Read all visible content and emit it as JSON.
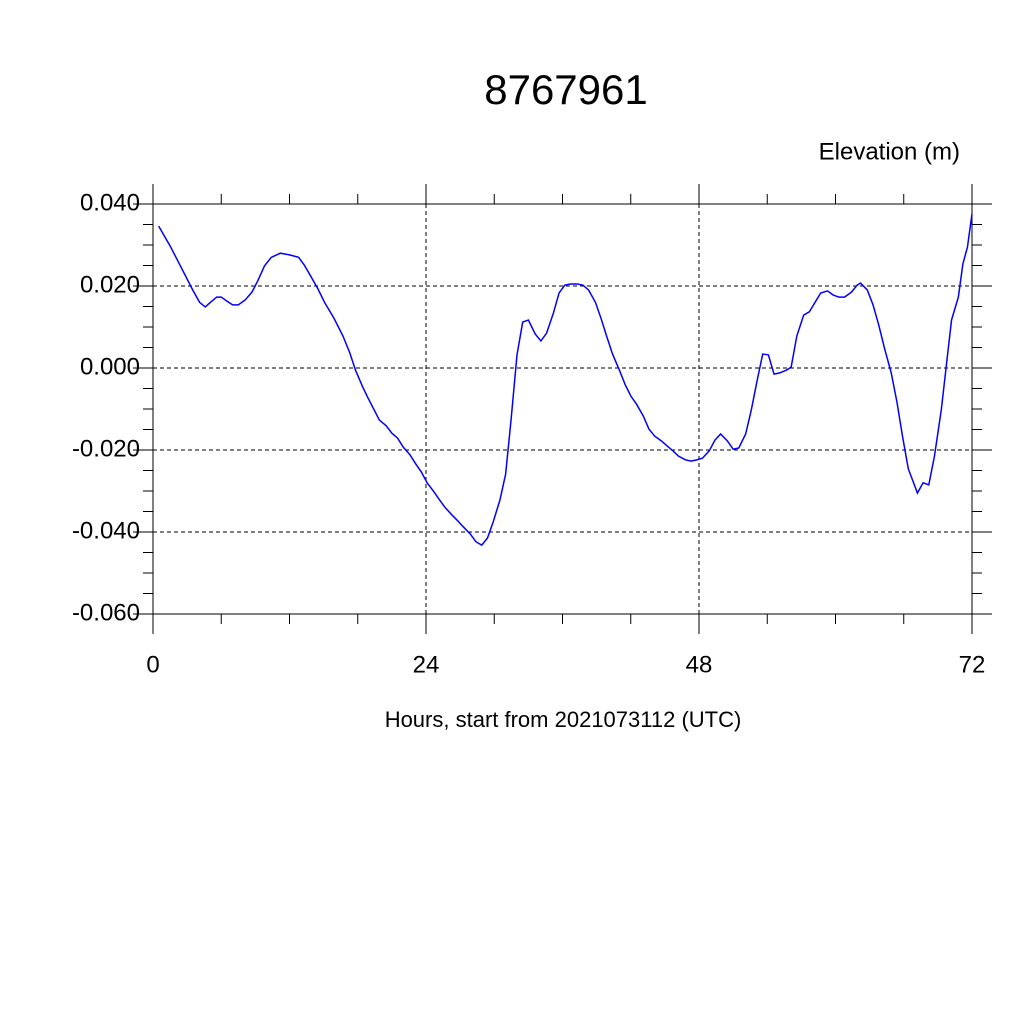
{
  "chart_data": {
    "type": "line",
    "title": "8767961",
    "y_label": "Elevation (m)",
    "x_label": "Hours, start from 2021073112 (UTC)",
    "xlim": [
      0,
      72
    ],
    "xticks": [
      0,
      24,
      48,
      72
    ],
    "ylim": [
      -0.06,
      0.04
    ],
    "yticks": [
      {
        "value": -0.06,
        "label": "-0.060"
      },
      {
        "value": -0.04,
        "label": "-0.040"
      },
      {
        "value": -0.02,
        "label": "-0.020"
      },
      {
        "value": 0,
        "label": "0.000"
      },
      {
        "value": 0.02,
        "label": "0.020"
      },
      {
        "value": 0.04,
        "label": "0.040"
      }
    ],
    "grid": true,
    "series": [
      {
        "color": "#0000ff",
        "x": [
          0.5,
          1.5,
          2.5,
          3.5,
          4.1,
          4.6,
          5.0,
          5.6,
          6.0,
          6.5,
          7.0,
          7.5,
          8.1,
          8.7,
          9.2,
          9.8,
          10.4,
          11.2,
          12.0,
          12.8,
          13.3,
          13.8,
          14.5,
          15.1,
          15.9,
          16.7,
          17.3,
          17.8,
          18.4,
          18.9,
          19.4,
          19.9,
          20.5,
          21.0,
          21.5,
          22.0,
          22.6,
          23.1,
          23.6,
          24.1,
          24.7,
          25.2,
          25.7,
          26.3,
          26.8,
          27.3,
          27.9,
          28.4,
          28.9,
          29.4,
          29.9,
          30.5,
          31.0,
          31.5,
          32.0,
          32.5,
          33.0,
          33.6,
          34.1,
          34.6,
          35.2,
          35.7,
          36.2,
          36.7,
          37.3,
          37.8,
          38.3,
          38.9,
          39.4,
          39.9,
          40.4,
          41.0,
          41.5,
          42.0,
          42.5,
          43.1,
          43.6,
          44.1,
          44.7,
          45.2,
          45.7,
          46.2,
          46.8,
          47.3,
          47.8,
          48.3,
          48.9,
          49.4,
          49.9,
          50.5,
          51.0,
          51.5,
          52.1,
          52.6,
          53.1,
          53.6,
          54.1,
          54.6,
          55.1,
          55.7,
          56.1,
          56.6,
          57.2,
          57.7,
          58.2,
          58.7,
          59.3,
          59.8,
          60.3,
          60.8,
          61.4,
          61.9,
          62.2,
          62.8,
          63.3,
          63.8,
          64.3,
          64.9,
          65.4,
          65.9,
          66.4,
          67.0,
          67.2,
          67.7,
          68.2,
          68.7,
          69.3,
          69.8,
          70.2,
          70.8,
          71.2,
          71.6,
          72.0
        ],
        "values": [
          0.0346,
          0.0298,
          0.0244,
          0.019,
          0.016,
          0.0149,
          0.0159,
          0.0173,
          0.0173,
          0.0163,
          0.0154,
          0.0154,
          0.0166,
          0.0185,
          0.0212,
          0.0249,
          0.027,
          0.028,
          0.0276,
          0.027,
          0.0251,
          0.0227,
          0.0193,
          0.0159,
          0.0122,
          0.0078,
          0.0037,
          -0.0005,
          -0.0044,
          -0.0073,
          -0.01,
          -0.0127,
          -0.0141,
          -0.0159,
          -0.0171,
          -0.0193,
          -0.0212,
          -0.0234,
          -0.0254,
          -0.028,
          -0.0302,
          -0.0322,
          -0.0341,
          -0.0359,
          -0.0373,
          -0.0388,
          -0.0405,
          -0.0424,
          -0.0432,
          -0.0415,
          -0.0376,
          -0.0322,
          -0.0259,
          -0.012,
          0.0032,
          0.0112,
          0.0117,
          0.0083,
          0.0066,
          0.0085,
          0.0134,
          0.0183,
          0.0202,
          0.0205,
          0.0205,
          0.0202,
          0.019,
          0.016,
          0.012,
          0.0076,
          0.0034,
          -0.0005,
          -0.004,
          -0.0068,
          -0.0088,
          -0.0117,
          -0.0149,
          -0.0166,
          -0.0178,
          -0.019,
          -0.0202,
          -0.0215,
          -0.0224,
          -0.0227,
          -0.0224,
          -0.022,
          -0.0202,
          -0.0176,
          -0.0161,
          -0.0178,
          -0.0198,
          -0.0195,
          -0.0161,
          -0.0102,
          -0.0032,
          0.0034,
          0.0032,
          -0.0015,
          -0.0012,
          -0.0005,
          0.0002,
          0.0078,
          0.0129,
          0.0137,
          0.016,
          0.0183,
          0.0188,
          0.0178,
          0.0173,
          0.0173,
          0.0185,
          0.0202,
          0.0207,
          0.019,
          0.0154,
          0.0105,
          0.0049,
          -0.0012,
          -0.0083,
          -0.0168,
          -0.0246,
          -0.029,
          -0.0305,
          -0.028,
          -0.0285,
          -0.0215,
          -0.0102,
          0.002,
          0.0117,
          0.0173,
          0.0254,
          0.0295,
          0.0376
        ]
      }
    ]
  }
}
